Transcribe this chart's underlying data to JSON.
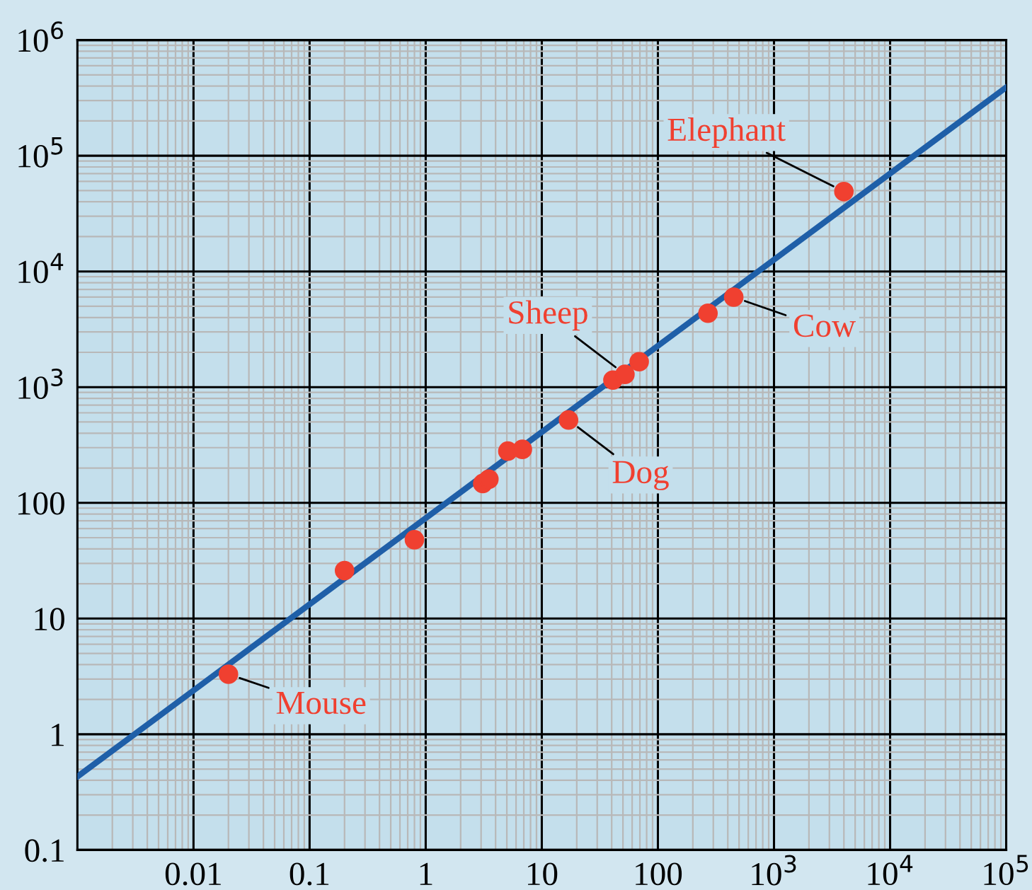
{
  "chart_data": {
    "type": "scatter",
    "log": "xy",
    "grid": true,
    "marker": "circle",
    "xlim": [
      0.001,
      100000
    ],
    "ylim": [
      0.1,
      1000000
    ],
    "xticks": [
      0.01,
      0.1,
      1,
      10,
      100,
      {
        "value": 1000,
        "label": "10$^{3}$"
      },
      {
        "value": 10000,
        "label": "10$^{4}$"
      },
      {
        "value": 100000,
        "label": "10$^{5}$"
      }
    ],
    "yticks": [
      0.1,
      1,
      10,
      100,
      {
        "value": 1000,
        "label": "10$^{3}$"
      },
      {
        "value": 10000,
        "label": "10$^{4}$"
      },
      {
        "value": 100000,
        "label": "10$^{5}$"
      },
      {
        "value": 1000000,
        "label": "10$^{6}$"
      }
    ],
    "series": [
      {
        "type": "line",
        "color": "#1f5fa8",
        "line_style": "solid",
        "marker": "none",
        "x": [
          0.001,
          100000
        ],
        "values": [
          0.43,
          390000
        ]
      },
      {
        "color": "#f04030",
        "x": [
          0.02,
          0.2,
          0.8,
          3.1,
          3.5,
          5.1,
          6.8,
          17,
          41,
          52,
          69,
          270,
          450,
          4000
        ],
        "values": [
          3.3,
          26,
          48,
          147,
          160,
          280,
          290,
          520,
          1150,
          1290,
          1660,
          4350,
          6000,
          49000
        ]
      }
    ],
    "annotations": [
      {
        "text": "Mouse",
        "x": 0.02,
        "y": 3.3
      },
      {
        "text": "Dog",
        "x": 17,
        "y": 520
      },
      {
        "text": "Sheep",
        "x": 52,
        "y": 1290
      },
      {
        "text": "Cow",
        "x": 450,
        "y": 6000
      },
      {
        "text": "Elephant",
        "x": 4000,
        "y": 49000
      }
    ]
  }
}
